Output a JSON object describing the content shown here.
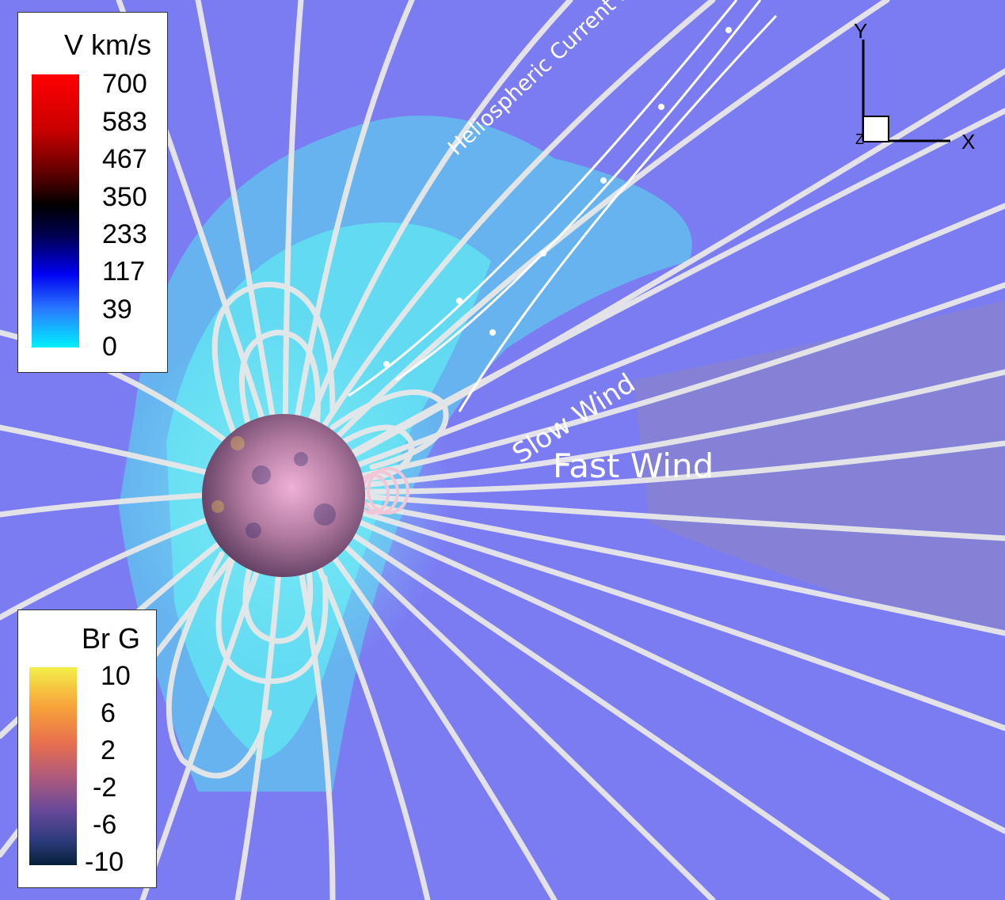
{
  "legends": {
    "velocity": {
      "title": "V km/s",
      "ticks": [
        "700",
        "583",
        "467",
        "350",
        "233",
        "117",
        "39",
        "0"
      ],
      "colors": [
        "#ff0000",
        "#d90000",
        "#8a0000",
        "#1a0000",
        "#000033",
        "#0000cc",
        "#1e6bff",
        "#00e5ff"
      ]
    },
    "field": {
      "title": "Br G",
      "ticks": [
        "10",
        "6",
        "2",
        "-2",
        "-6",
        "-10"
      ],
      "colors": [
        "#f4ef4a",
        "#f7a23a",
        "#e9704e",
        "#b05a7a",
        "#6a4a9a",
        "#2a3a7a",
        "#06203a"
      ]
    }
  },
  "axes": {
    "y": "Y",
    "x": "X",
    "z": "Z"
  },
  "annotations": {
    "hcs": "Heliospheric Current Sheet",
    "slow": "Slow Wind",
    "fast": "Fast Wind"
  },
  "colors": {
    "background": "#7c7cf2",
    "slow_region": "#5fd8ee",
    "field_line": "#e6e6e6",
    "sun": "#b77a9a"
  }
}
